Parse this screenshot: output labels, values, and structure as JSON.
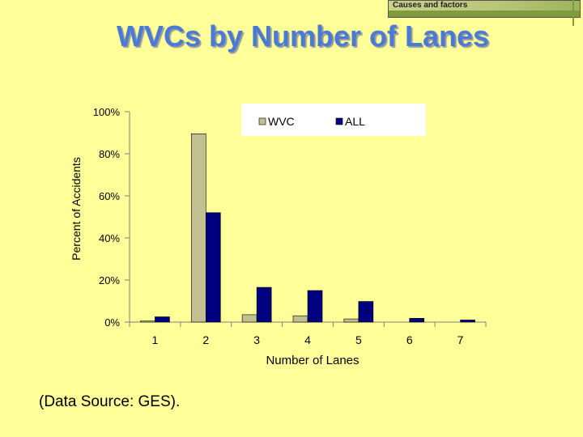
{
  "header": {
    "badge_label": "Causes and factors"
  },
  "footer": {
    "source": "(Data Source: GES)."
  },
  "colors": {
    "background": "#ffff99",
    "wvc": "#c0c090",
    "all": "#000080",
    "title": "#4a7bd4"
  },
  "chart_data": {
    "type": "bar",
    "title": "WVCs by Number of Lanes",
    "xlabel": "Number of Lanes",
    "ylabel": "Percent of Accidents",
    "categories": [
      "1",
      "2",
      "3",
      "4",
      "5",
      "6",
      "7"
    ],
    "series": [
      {
        "name": "WVC",
        "values": [
          0.5,
          89.5,
          3.5,
          3.0,
          1.5,
          0.0,
          0.0
        ]
      },
      {
        "name": "ALL",
        "values": [
          2.5,
          52.0,
          16.5,
          15.0,
          9.8,
          1.8,
          1.0
        ]
      }
    ],
    "ylim": [
      0,
      100
    ],
    "yticks": [
      "0%",
      "20%",
      "40%",
      "60%",
      "80%",
      "100%"
    ],
    "grid": false,
    "legend": "top-right"
  }
}
